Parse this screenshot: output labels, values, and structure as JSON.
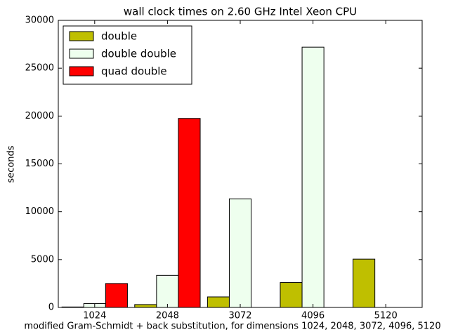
{
  "chart_data": {
    "type": "bar",
    "title": "wall clock times on 2.60 GHz Intel Xeon CPU",
    "x_label": "modified Gram-Schmidt + back substitution, for dimensions 1024, 2048, 3072, 4096, 5120",
    "y_label": "seconds",
    "categories": [
      "1024",
      "2048",
      "3072",
      "4096",
      "5120"
    ],
    "series": [
      {
        "name": "double",
        "color": "#bfbf00",
        "values": [
          50,
          300,
          1100,
          2600,
          5050
        ]
      },
      {
        "name": "double double",
        "color": "#eeffee",
        "values": [
          400,
          3350,
          11350,
          27200,
          null
        ]
      },
      {
        "name": "quad double",
        "color": "#ff0000",
        "values": [
          2500,
          19750,
          null,
          null,
          null
        ]
      }
    ],
    "ylim": [
      0,
      30000
    ],
    "yticks": [
      0,
      5000,
      10000,
      15000,
      20000,
      25000,
      30000
    ],
    "legend": "upper left"
  }
}
